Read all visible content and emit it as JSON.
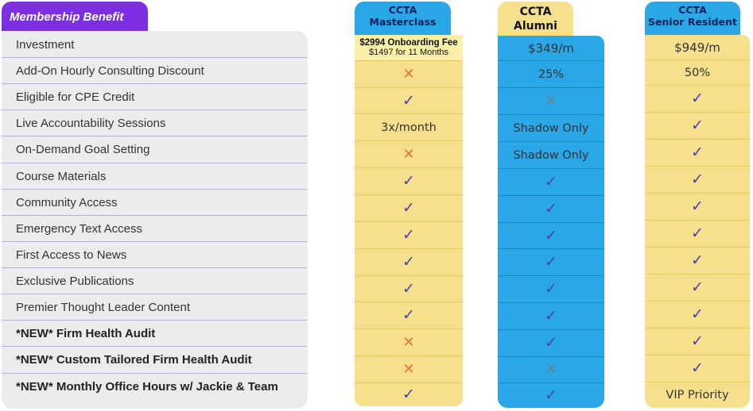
{
  "header": {
    "title": "Membership Benefit"
  },
  "benefits": [
    {
      "label": "Investment",
      "is_new": false
    },
    {
      "label": "Add-On Hourly Consulting Discount",
      "is_new": false
    },
    {
      "label": "Eligible for CPE Credit",
      "is_new": false
    },
    {
      "label": "Live Accountability Sessions",
      "is_new": false
    },
    {
      "label": "On-Demand Goal Setting",
      "is_new": false
    },
    {
      "label": "Course Materials",
      "is_new": false
    },
    {
      "label": "Community Access",
      "is_new": false
    },
    {
      "label": "Emergency Text Access",
      "is_new": false
    },
    {
      "label": "First Access to News",
      "is_new": false
    },
    {
      "label": "Exclusive Publications",
      "is_new": false
    },
    {
      "label": "Premier Thought Leader Content",
      "is_new": false
    },
    {
      "label": "*NEW* Firm Health Audit",
      "is_new": true
    },
    {
      "label": "*NEW* Custom Tailored Firm Health Audit",
      "is_new": true
    },
    {
      "label": "*NEW* Monthly Office Hours w/ Jackie & Team",
      "is_new": true
    }
  ],
  "plans": [
    {
      "name_line1": "CCTA",
      "name_line2": "Masterclass",
      "tab_color": "#2aa7e6",
      "body_color": "#f7e08c",
      "investment_main": "$2994 Onboarding Fee",
      "investment_sub": "$1497 for 11 Months",
      "values": [
        "cross",
        "check",
        "3x/month",
        "cross",
        "check",
        "check",
        "check",
        "check",
        "check",
        "check",
        "cross",
        "cross",
        "check"
      ]
    },
    {
      "name_line1": "CCTA",
      "name_line2": "Alumni",
      "tab_color": "#f7e08c",
      "body_color": "#2aa7e6",
      "investment_main": "$349/m",
      "investment_sub": "",
      "values": [
        "25%",
        "cross",
        "Shadow Only",
        "Shadow Only",
        "check",
        "check",
        "check",
        "check",
        "check",
        "check",
        "check",
        "cross",
        "check"
      ]
    },
    {
      "name_line1": "CCTA",
      "name_line2": "Senior Resident",
      "tab_color": "#2aa7e6",
      "body_color": "#f7e08c",
      "investment_main": "$949/m",
      "investment_sub": "",
      "values": [
        "50%",
        "check",
        "check",
        "check",
        "check",
        "check",
        "check",
        "check",
        "check",
        "check",
        "check",
        "check",
        "VIP Priority"
      ]
    }
  ],
  "symbols": {
    "check": "✓",
    "cross": "✕"
  },
  "colors": {
    "accent": "#7b2fe0",
    "check": "#4a3fb0",
    "cross_orange": "#e2743d",
    "cross_gray": "#6d7f8c"
  }
}
